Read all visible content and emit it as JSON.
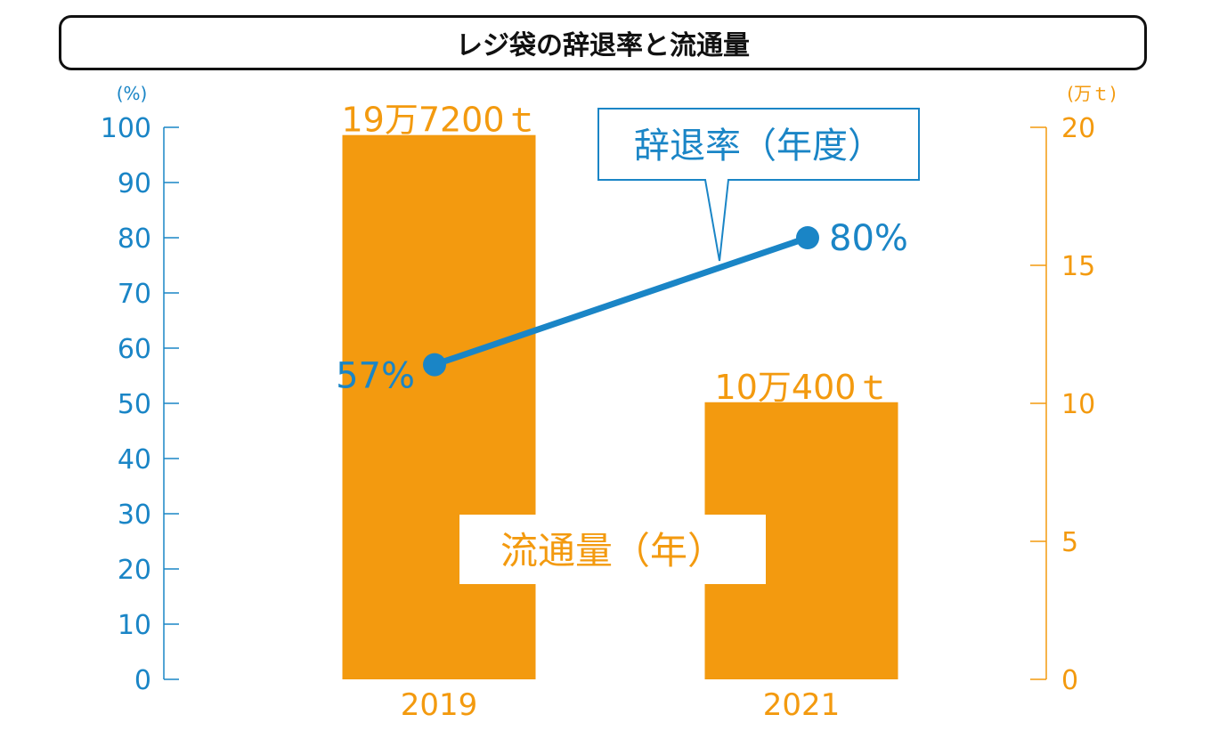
{
  "title": "レジ袋の辞退率と流通量",
  "left_axis": {
    "unit": "(%)",
    "color": "#1a85c6"
  },
  "right_axis": {
    "unit": "(万ｔ)",
    "color": "#f39a0f"
  },
  "callouts": {
    "rate": "辞退率（年度）",
    "volume": "流通量（年）"
  },
  "chart_data": {
    "type": "bar+line",
    "categories": [
      "2019",
      "2021"
    ],
    "series": [
      {
        "name": "流通量（年）",
        "type": "bar",
        "axis": "right",
        "values": [
          19.72,
          10.04
        ],
        "labels": [
          "19万7200ｔ",
          "10万400ｔ"
        ],
        "color": "#f39a0f"
      },
      {
        "name": "辞退率（年度）",
        "type": "line",
        "axis": "left",
        "values": [
          57,
          80
        ],
        "labels": [
          "57%",
          "80%"
        ],
        "color": "#1a85c6"
      }
    ],
    "left_ylim": [
      0,
      100
    ],
    "left_ticks": [
      0,
      10,
      20,
      30,
      40,
      50,
      60,
      70,
      80,
      90,
      100
    ],
    "right_ylim": [
      0,
      20
    ],
    "right_ticks": [
      0,
      5,
      10,
      15,
      20
    ]
  }
}
